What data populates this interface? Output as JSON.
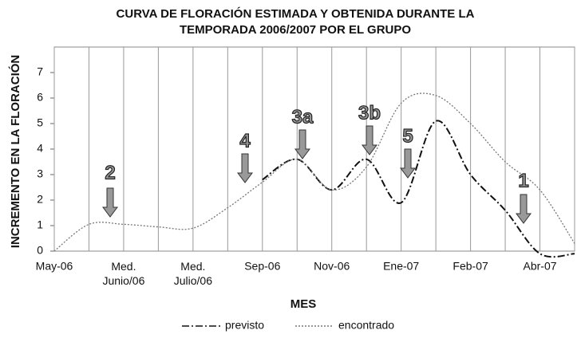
{
  "chart_data": {
    "type": "line",
    "title": [
      "CURVA DE FLORACIÓN ESTIMADA Y OBTENIDA DURANTE LA",
      "TEMPORADA 2006/2007 POR EL GRUPO"
    ],
    "x_label": "MES",
    "y_label": "INCREMENTO EN LA FLORACIÓN",
    "categories": [
      "May-06",
      null,
      "Med. Junio/06",
      null,
      "Med. Julio/06",
      null,
      "Sep-06",
      null,
      "Nov-06",
      null,
      "Ene-07",
      null,
      "Feb-07",
      null,
      "Abr-07",
      null
    ],
    "series": [
      {
        "name": "previsto",
        "color": "#111111",
        "values": [
          null,
          null,
          null,
          null,
          null,
          null,
          2.8,
          3.6,
          2.4,
          3.6,
          1.9,
          5.1,
          3.0,
          1.6,
          -0.1,
          -0.1
        ]
      },
      {
        "name": "encontrado",
        "color": "#777777",
        "values": [
          0,
          1.05,
          1.05,
          0.95,
          0.9,
          1.7,
          2.7,
          3.6,
          2.4,
          3.3,
          5.8,
          6.1,
          5.0,
          3.5,
          2.4,
          0.3
        ]
      }
    ],
    "annotations": [
      "2",
      "4",
      "3a",
      "3b",
      "5",
      "1"
    ],
    "ylim": [
      0,
      8
    ],
    "yticks": [
      0,
      1,
      2,
      3,
      4,
      5,
      6,
      7
    ],
    "grid": true,
    "legend": "bottom"
  }
}
